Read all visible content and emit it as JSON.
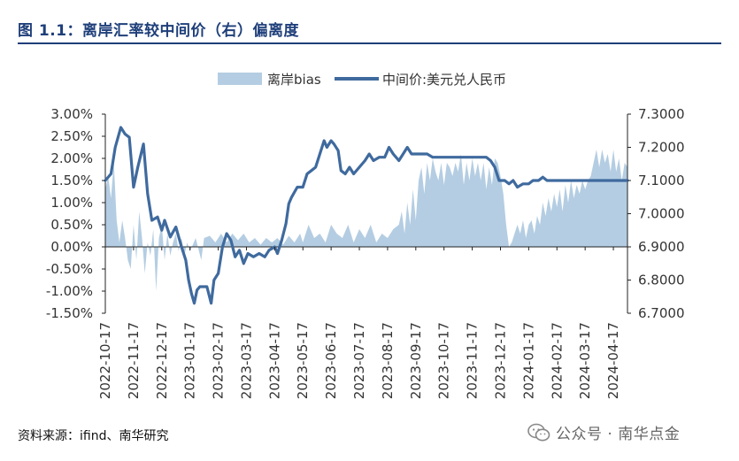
{
  "header": {
    "title": "图 1.1：离岸汇率较中间价（右）偏离度"
  },
  "footer": {
    "source": "资料来源：ifind、南华研究",
    "watermark": "公众号 · 南华点金"
  },
  "colors": {
    "area": "#b4cde2",
    "line": "#3f6a9e",
    "axis": "#222222",
    "text": "#333333",
    "title": "#1f3f7a"
  },
  "chart_data": {
    "type": "area+line",
    "legend": {
      "position": "top",
      "entries": [
        "离岸bias",
        "中间价:美元兑人民币"
      ]
    },
    "x_ticks": [
      "2022-10-17",
      "2022-11-17",
      "2022-12-17",
      "2023-01-17",
      "2023-02-17",
      "2023-03-17",
      "2023-04-17",
      "2023-05-17",
      "2023-06-17",
      "2023-07-17",
      "2023-08-17",
      "2023-09-17",
      "2023-10-17",
      "2023-11-17",
      "2023-12-17",
      "2024-01-17",
      "2024-02-17",
      "2024-03-17",
      "2024-04-17"
    ],
    "x_range": [
      0,
      18.5
    ],
    "y_left": {
      "ticks": [
        "3.00%",
        "2.50%",
        "2.00%",
        "1.50%",
        "1.00%",
        "0.50%",
        "0.00%",
        "-0.50%",
        "-1.00%",
        "-1.50%"
      ],
      "range": [
        -1.5,
        3.0
      ]
    },
    "y_right": {
      "ticks": [
        "7.3000",
        "7.2000",
        "7.1000",
        "7.0000",
        "6.9000",
        "6.8000",
        "6.7000"
      ],
      "range": [
        6.7,
        7.3
      ]
    },
    "series": [
      {
        "name": "离岸bias",
        "axis": "left",
        "kind": "area",
        "points": [
          [
            0,
            1.3
          ],
          [
            0.1,
            1.6
          ],
          [
            0.2,
            1.1
          ],
          [
            0.3,
            1.9
          ],
          [
            0.4,
            0.6
          ],
          [
            0.5,
            0.1
          ],
          [
            0.6,
            0.6
          ],
          [
            0.7,
            0.2
          ],
          [
            0.8,
            -0.3
          ],
          [
            0.9,
            -0.5
          ],
          [
            1.0,
            0.5
          ],
          [
            1.1,
            -0.3
          ],
          [
            1.2,
            0.8
          ],
          [
            1.3,
            0.2
          ],
          [
            1.4,
            -0.6
          ],
          [
            1.5,
            0.1
          ],
          [
            1.6,
            -0.2
          ],
          [
            1.7,
            0.4
          ],
          [
            1.8,
            -1.0
          ],
          [
            1.9,
            0.2
          ],
          [
            2.0,
            0.5
          ],
          [
            2.1,
            -0.3
          ],
          [
            2.2,
            0.3
          ],
          [
            2.3,
            -0.2
          ],
          [
            2.4,
            0.1
          ],
          [
            2.5,
            0.3
          ],
          [
            2.6,
            -0.1
          ],
          [
            2.7,
            0.2
          ],
          [
            2.8,
            -0.2
          ],
          [
            2.9,
            0.1
          ],
          [
            3.0,
            -0.1
          ],
          [
            3.2,
            0.2
          ],
          [
            3.4,
            -0.3
          ],
          [
            3.5,
            0.2
          ],
          [
            3.7,
            0.25
          ],
          [
            3.9,
            0.1
          ],
          [
            4.1,
            0.3
          ],
          [
            4.3,
            0.1
          ],
          [
            4.5,
            0.3
          ],
          [
            4.7,
            0.15
          ],
          [
            4.9,
            0.3
          ],
          [
            5.1,
            0.1
          ],
          [
            5.3,
            0.2
          ],
          [
            5.5,
            0.05
          ],
          [
            5.7,
            0.2
          ],
          [
            5.9,
            0.1
          ],
          [
            6.1,
            0.2
          ],
          [
            6.3,
            0.05
          ],
          [
            6.5,
            0.25
          ],
          [
            6.7,
            0.1
          ],
          [
            6.9,
            0.3
          ],
          [
            7.0,
            0.1
          ],
          [
            7.2,
            0.5
          ],
          [
            7.4,
            0.2
          ],
          [
            7.6,
            0.3
          ],
          [
            7.8,
            0.1
          ],
          [
            8.0,
            0.5
          ],
          [
            8.2,
            0.3
          ],
          [
            8.4,
            0.2
          ],
          [
            8.6,
            0.5
          ],
          [
            8.8,
            0.1
          ],
          [
            9.0,
            0.4
          ],
          [
            9.2,
            0.2
          ],
          [
            9.4,
            0.5
          ],
          [
            9.6,
            0.1
          ],
          [
            9.8,
            0.3
          ],
          [
            10.0,
            0.2
          ],
          [
            10.2,
            0.4
          ],
          [
            10.4,
            0.5
          ],
          [
            10.5,
            0.8
          ],
          [
            10.6,
            0.3
          ],
          [
            10.7,
            1.0
          ],
          [
            10.8,
            0.5
          ],
          [
            10.9,
            1.3
          ],
          [
            11.0,
            0.6
          ],
          [
            11.1,
            1.5
          ],
          [
            11.2,
            1.8
          ],
          [
            11.3,
            1.2
          ],
          [
            11.4,
            1.9
          ],
          [
            11.5,
            1.5
          ],
          [
            11.6,
            2.0
          ],
          [
            11.7,
            1.7
          ],
          [
            11.8,
            1.5
          ],
          [
            11.9,
            1.9
          ],
          [
            12.0,
            1.4
          ],
          [
            12.1,
            1.9
          ],
          [
            12.2,
            1.8
          ],
          [
            12.3,
            1.6
          ],
          [
            12.4,
            1.9
          ],
          [
            12.5,
            1.7
          ],
          [
            12.6,
            2.1
          ],
          [
            12.7,
            1.4
          ],
          [
            12.8,
            1.9
          ],
          [
            12.9,
            1.5
          ],
          [
            13.0,
            2.0
          ],
          [
            13.1,
            1.6
          ],
          [
            13.2,
            1.9
          ],
          [
            13.3,
            1.5
          ],
          [
            13.4,
            1.9
          ],
          [
            13.5,
            1.3
          ],
          [
            13.6,
            1.8
          ],
          [
            13.7,
            1.4
          ],
          [
            13.8,
            2.0
          ],
          [
            13.9,
            1.9
          ],
          [
            14.0,
            1.6
          ],
          [
            14.1,
            1.2
          ],
          [
            14.2,
            0.5
          ],
          [
            14.3,
            0.0
          ],
          [
            14.4,
            0.1
          ],
          [
            14.5,
            0.3
          ],
          [
            14.6,
            0.5
          ],
          [
            14.7,
            0.3
          ],
          [
            14.8,
            0.6
          ],
          [
            14.9,
            0.2
          ],
          [
            15.0,
            0.5
          ],
          [
            15.1,
            0.6
          ],
          [
            15.2,
            0.3
          ],
          [
            15.3,
            0.7
          ],
          [
            15.4,
            0.5
          ],
          [
            15.5,
            1.0
          ],
          [
            15.6,
            0.7
          ],
          [
            15.7,
            1.1
          ],
          [
            15.8,
            0.8
          ],
          [
            15.9,
            1.2
          ],
          [
            16.0,
            0.9
          ],
          [
            16.1,
            1.3
          ],
          [
            16.2,
            0.8
          ],
          [
            16.3,
            1.4
          ],
          [
            16.4,
            1.0
          ],
          [
            16.5,
            1.5
          ],
          [
            16.6,
            1.1
          ],
          [
            16.7,
            1.4
          ],
          [
            16.8,
            1.2
          ],
          [
            16.9,
            1.5
          ],
          [
            17.0,
            1.3
          ],
          [
            17.1,
            1.5
          ],
          [
            17.2,
            1.6
          ],
          [
            17.3,
            1.9
          ],
          [
            17.4,
            2.2
          ],
          [
            17.5,
            1.8
          ],
          [
            17.6,
            2.2
          ],
          [
            17.7,
            1.9
          ],
          [
            17.8,
            2.1
          ],
          [
            17.9,
            1.7
          ],
          [
            18.0,
            2.2
          ],
          [
            18.1,
            1.7
          ],
          [
            18.2,
            2.0
          ],
          [
            18.3,
            1.5
          ],
          [
            18.4,
            1.9
          ],
          [
            18.5,
            1.8
          ]
        ]
      },
      {
        "name": "中间价:美元兑人民币",
        "axis": "right",
        "kind": "line",
        "points": [
          [
            0,
            7.1
          ],
          [
            0.2,
            7.12
          ],
          [
            0.35,
            7.2
          ],
          [
            0.55,
            7.26
          ],
          [
            0.7,
            7.24
          ],
          [
            0.85,
            7.23
          ],
          [
            1.0,
            7.08
          ],
          [
            1.15,
            7.14
          ],
          [
            1.35,
            7.21
          ],
          [
            1.5,
            7.06
          ],
          [
            1.65,
            6.98
          ],
          [
            1.85,
            6.99
          ],
          [
            2.0,
            6.95
          ],
          [
            2.1,
            6.98
          ],
          [
            2.3,
            6.93
          ],
          [
            2.5,
            6.96
          ],
          [
            2.7,
            6.9
          ],
          [
            2.85,
            6.86
          ],
          [
            2.95,
            6.8
          ],
          [
            3.05,
            6.76
          ],
          [
            3.15,
            6.73
          ],
          [
            3.25,
            6.77
          ],
          [
            3.35,
            6.78
          ],
          [
            3.6,
            6.78
          ],
          [
            3.75,
            6.73
          ],
          [
            3.85,
            6.8
          ],
          [
            4.0,
            6.82
          ],
          [
            4.15,
            6.9
          ],
          [
            4.3,
            6.94
          ],
          [
            4.45,
            6.92
          ],
          [
            4.6,
            6.87
          ],
          [
            4.75,
            6.89
          ],
          [
            4.9,
            6.85
          ],
          [
            5.05,
            6.88
          ],
          [
            5.25,
            6.87
          ],
          [
            5.45,
            6.88
          ],
          [
            5.65,
            6.87
          ],
          [
            5.8,
            6.89
          ],
          [
            6.0,
            6.9
          ],
          [
            6.1,
            6.88
          ],
          [
            6.25,
            6.92
          ],
          [
            6.4,
            6.97
          ],
          [
            6.5,
            7.03
          ],
          [
            6.6,
            7.05
          ],
          [
            6.8,
            7.08
          ],
          [
            7.0,
            7.08
          ],
          [
            7.15,
            7.12
          ],
          [
            7.3,
            7.13
          ],
          [
            7.45,
            7.14
          ],
          [
            7.6,
            7.18
          ],
          [
            7.75,
            7.22
          ],
          [
            7.85,
            7.2
          ],
          [
            8.0,
            7.22
          ],
          [
            8.1,
            7.21
          ],
          [
            8.25,
            7.19
          ],
          [
            8.35,
            7.13
          ],
          [
            8.5,
            7.12
          ],
          [
            8.65,
            7.14
          ],
          [
            8.8,
            7.12
          ],
          [
            9.0,
            7.14
          ],
          [
            9.2,
            7.16
          ],
          [
            9.35,
            7.18
          ],
          [
            9.5,
            7.16
          ],
          [
            9.7,
            7.17
          ],
          [
            9.9,
            7.17
          ],
          [
            10.05,
            7.2
          ],
          [
            10.2,
            7.18
          ],
          [
            10.4,
            7.16
          ],
          [
            10.55,
            7.18
          ],
          [
            10.7,
            7.2
          ],
          [
            10.85,
            7.18
          ],
          [
            11.0,
            7.18
          ],
          [
            11.2,
            7.18
          ],
          [
            11.4,
            7.18
          ],
          [
            11.6,
            7.17
          ],
          [
            11.8,
            7.17
          ],
          [
            12.0,
            7.17
          ],
          [
            12.4,
            7.17
          ],
          [
            12.8,
            7.17
          ],
          [
            13.2,
            7.17
          ],
          [
            13.5,
            7.17
          ],
          [
            13.65,
            7.16
          ],
          [
            13.8,
            7.14
          ],
          [
            13.95,
            7.1
          ],
          [
            14.15,
            7.1
          ],
          [
            14.3,
            7.09
          ],
          [
            14.45,
            7.1
          ],
          [
            14.6,
            7.08
          ],
          [
            14.8,
            7.09
          ],
          [
            15.0,
            7.09
          ],
          [
            15.15,
            7.1
          ],
          [
            15.35,
            7.1
          ],
          [
            15.5,
            7.11
          ],
          [
            15.65,
            7.1
          ],
          [
            15.8,
            7.1
          ],
          [
            16.0,
            7.1
          ],
          [
            16.2,
            7.1
          ],
          [
            16.4,
            7.1
          ],
          [
            16.6,
            7.1
          ],
          [
            16.8,
            7.1
          ],
          [
            17.0,
            7.1
          ],
          [
            17.2,
            7.1
          ],
          [
            17.4,
            7.1
          ],
          [
            17.6,
            7.1
          ],
          [
            17.8,
            7.1
          ],
          [
            18.0,
            7.1
          ],
          [
            18.2,
            7.1
          ],
          [
            18.35,
            7.1
          ],
          [
            18.5,
            7.1
          ]
        ]
      }
    ]
  }
}
